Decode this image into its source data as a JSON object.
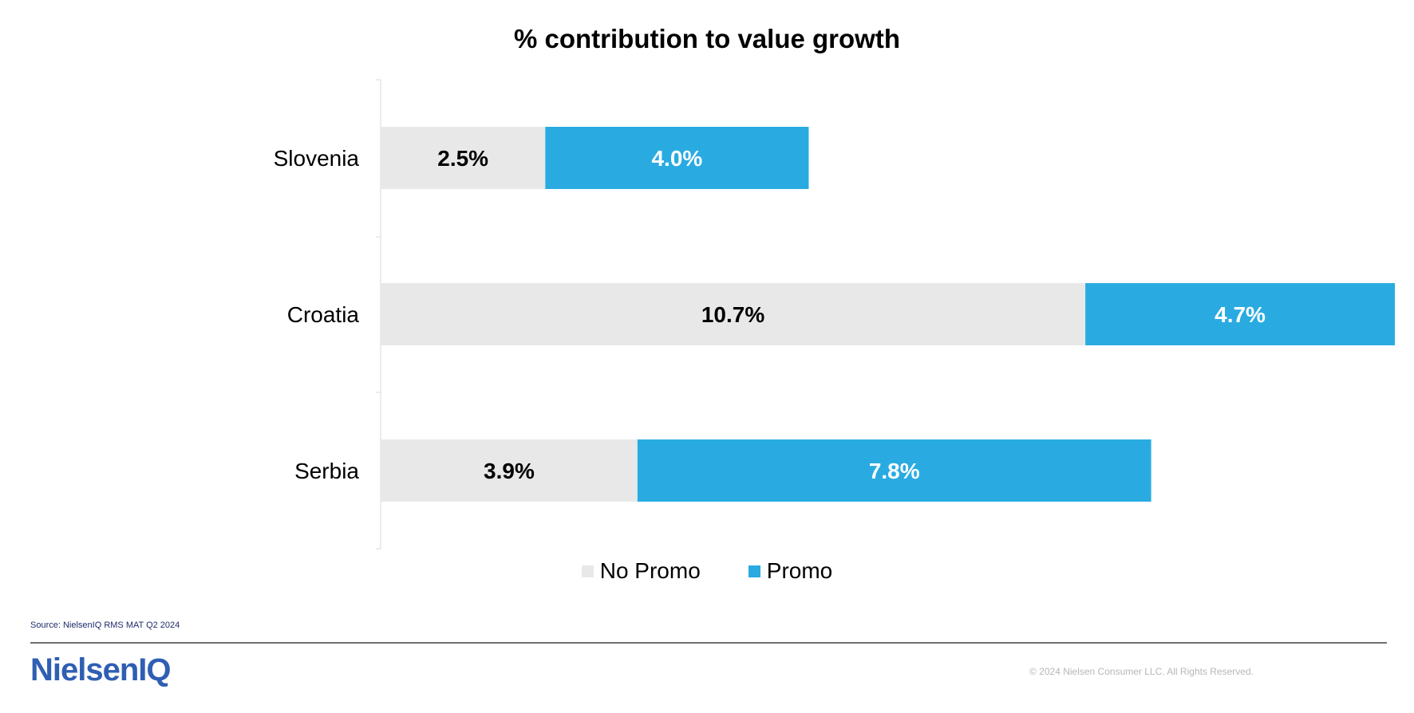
{
  "chart_data": {
    "type": "bar",
    "orientation": "horizontal",
    "stacked": true,
    "title": "% contribution to value growth",
    "categories": [
      "Slovenia",
      "Croatia",
      "Serbia"
    ],
    "series": [
      {
        "name": "No Promo",
        "values": [
          2.5,
          10.7,
          3.9
        ],
        "labels": [
          "2.5%",
          "10.7%",
          "3.9%"
        ],
        "color": "#e8e8e8",
        "label_color": "#000000"
      },
      {
        "name": "Promo",
        "values": [
          4.0,
          4.7,
          7.8
        ],
        "labels": [
          "4.0%",
          "4.7%",
          "7.8%"
        ],
        "color": "#29abe2",
        "label_color": "#ffffff"
      }
    ],
    "xlim": [
      0,
      15.4
    ],
    "grid": false,
    "legend_position": "bottom-center"
  },
  "footer": {
    "source": "Source: NielsenIQ RMS MAT Q2 2024",
    "logo_text": "NielsenIQ",
    "copyright": "© 2024 Nielsen Consumer LLC. All Rights Reserved."
  }
}
